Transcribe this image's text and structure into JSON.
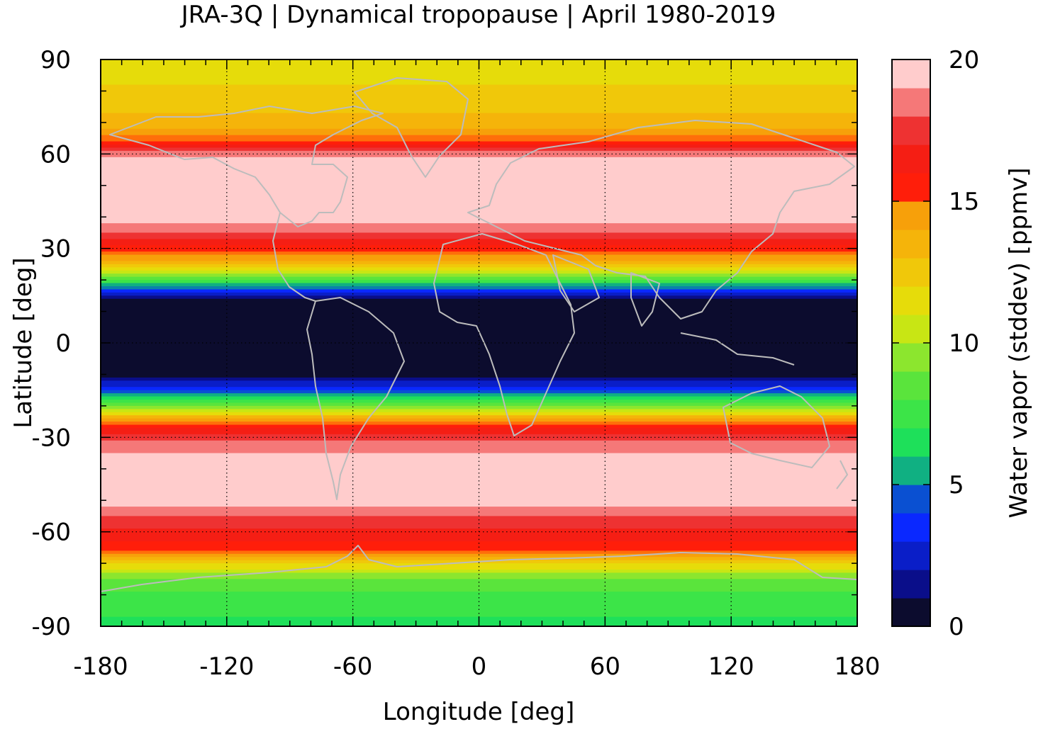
{
  "chart_data": {
    "type": "heatmap",
    "title": "JRA-3Q | Dynamical tropopause | April 1980-2019",
    "xlabel": "Longitude [deg]",
    "ylabel": "Latitude [deg]",
    "xlim": [
      -180,
      180
    ],
    "ylim": [
      -90,
      90
    ],
    "x_ticks": [
      -180,
      -120,
      -60,
      0,
      60,
      120,
      180
    ],
    "y_ticks": [
      90,
      60,
      30,
      0,
      -30,
      -60,
      -90
    ],
    "x_tick_labels": [
      "-180",
      "-120",
      "-60",
      "0",
      "60",
      "120",
      "180"
    ],
    "y_tick_labels": [
      "90",
      "60",
      "30",
      "0",
      "-30",
      "-60",
      "-90"
    ],
    "grid": "dotted at major ticks",
    "overlay": "coastlines (gray)",
    "colorbar": {
      "label": "Water vapor (stddev) [ppmv]",
      "range": [
        0,
        20
      ],
      "ticks": [
        0,
        5,
        10,
        15,
        20
      ],
      "tick_labels": [
        "0",
        "5",
        "10",
        "15",
        "20"
      ],
      "levels": 20,
      "colors": [
        "#0c0c2e",
        "#0a0e8a",
        "#0a1ec8",
        "#0a28ff",
        "#0a50d2",
        "#0a82aa",
        "#10b082",
        "#1ee05a",
        "#3ce448",
        "#5ae43c",
        "#8ce62e",
        "#c8e614",
        "#e6dc0a",
        "#f0c80a",
        "#f5b40a",
        "#f7a00a",
        "#ff6e0a",
        "#ff1e0a",
        "#f51e14",
        "#ee3232",
        "#f57878",
        "#ffcccc"
      ]
    },
    "zonal_profile": {
      "description_units": "latitude [deg] vs water vapor stddev [ppmv]",
      "lat": [
        90,
        80,
        70,
        65,
        60,
        50,
        40,
        35,
        30,
        25,
        20,
        17,
        14,
        10,
        0,
        -10,
        -14,
        -18,
        -22,
        -25,
        -30,
        -40,
        -50,
        -55,
        -60,
        -65,
        -70,
        -75,
        -80,
        -90
      ],
      "value": [
        11,
        12,
        13,
        15,
        19,
        20,
        20,
        18,
        16,
        13,
        8,
        4,
        1,
        0,
        0,
        0,
        3,
        7,
        11,
        15,
        18,
        20,
        20,
        18,
        17,
        16,
        12,
        9,
        8,
        7
      ]
    }
  }
}
